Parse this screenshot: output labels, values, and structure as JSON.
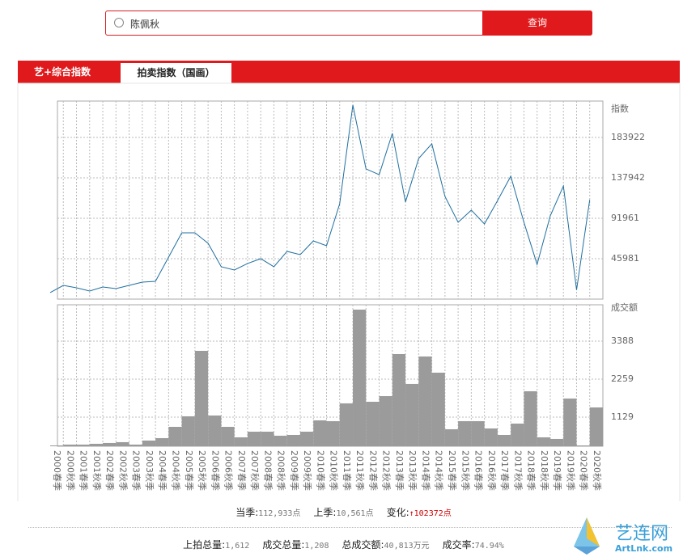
{
  "search": {
    "query": "陈佩秋",
    "button": "查询"
  },
  "tabs": [
    "艺+综合指数",
    "拍卖指数（国画）"
  ],
  "chart_data": {
    "type": "line_bar",
    "categories": [
      "2000春季",
      "2000秋季",
      "2001春季",
      "2001秋季",
      "2002春季",
      "2002秋季",
      "2003春季",
      "2003秋季",
      "2004春季",
      "2004秋季",
      "2005春季",
      "2005秋季",
      "2006春季",
      "2006秋季",
      "2007春季",
      "2007秋季",
      "2008春季",
      "2008秋季",
      "2009春季",
      "2009秋季",
      "2010春季",
      "2010秋季",
      "2011春季",
      "2011秋季",
      "2012春季",
      "2012秋季",
      "2013春季",
      "2013秋季",
      "2014春季",
      "2014秋季",
      "2015春季",
      "2015秋季",
      "2016春季",
      "2016秋季",
      "2017春季",
      "2017秋季",
      "2018春季",
      "2018秋季",
      "2019春季",
      "2019秋季",
      "2020春季",
      "2020秋季"
    ],
    "ylabel": "指数",
    "ylim": [
      0,
      225307
    ],
    "yticks": [
      45981,
      91961,
      137942,
      183922
    ],
    "y2label": "成交额",
    "y2lim": [
      264,
      4471
    ],
    "y2ticks": [
      1129,
      2259,
      3388
    ],
    "grid": true,
    "series": [
      {
        "type": "line",
        "color": "#1f6f9f",
        "values": [
          7400,
          15600,
          12900,
          9200,
          13800,
          12000,
          15600,
          19300,
          20200,
          47800,
          75400,
          75400,
          63500,
          36800,
          33100,
          40500,
          46000,
          36800,
          54300,
          50600,
          66200,
          60700,
          108500,
          220700,
          148100,
          141600,
          188500,
          110400,
          160000,
          176600,
          116800,
          87400,
          101200,
          85500,
          112200,
          139800,
          87400,
          39500,
          94700,
          128700,
          10561,
          112933
        ]
      },
      {
        "type": "bar",
        "axis": "y2",
        "color": "#9b9b9b",
        "values": [
          288,
          313,
          313,
          337,
          361,
          385,
          313,
          433,
          505,
          841,
          1154,
          3101,
          1178,
          841,
          529,
          697,
          697,
          577,
          601,
          697,
          1034,
          1010,
          1539,
          4327,
          1587,
          1755,
          3005,
          2116,
          2933,
          2452,
          769,
          1010,
          1010,
          793,
          601,
          938,
          1899,
          529,
          481,
          1683,
          288,
          1418
        ]
      }
    ]
  },
  "stats": [
    [
      {
        "label": "当季:",
        "value": "112,933点"
      },
      {
        "label": "上季:",
        "value": "10,561点"
      },
      {
        "label": "变化:",
        "value": "↑102372点"
      }
    ],
    [
      {
        "label": "上拍总量:",
        "value": "1,612"
      },
      {
        "label": "成交总量:",
        "value": "1,208"
      },
      {
        "label": "总成交额:",
        "value": "40,813万元"
      },
      {
        "label": "成交率:",
        "value": "74.94%"
      }
    ]
  ],
  "logo": {
    "name": "艺连网",
    "url": "ArtLnk.com"
  }
}
